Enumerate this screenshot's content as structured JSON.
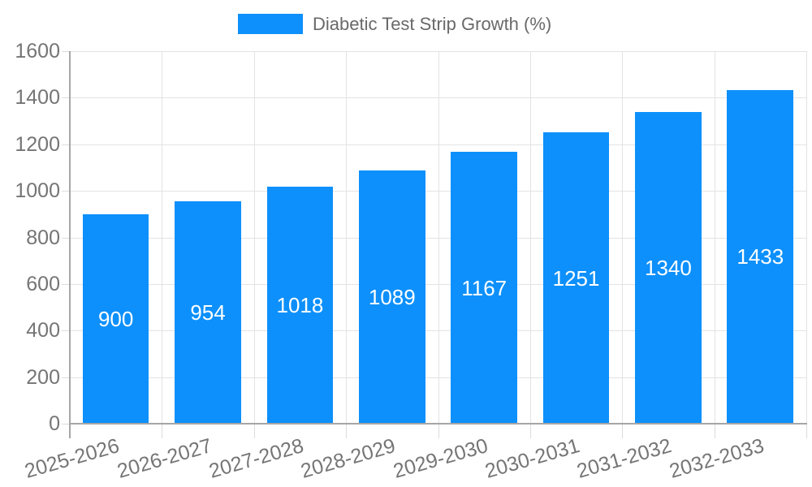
{
  "chart_data": {
    "type": "bar",
    "title": "",
    "legend": {
      "label": "Diabetic Test Strip Growth (%)",
      "position": "top-center"
    },
    "categories": [
      "2025-2026",
      "2026-2027",
      "2027-2028",
      "2028-2029",
      "2029-2030",
      "2030-2031",
      "2031-2032",
      "2032-2033"
    ],
    "series": [
      {
        "name": "Diabetic Test Strip Growth (%)",
        "values": [
          900,
          954,
          1018,
          1089,
          1167,
          1251,
          1340,
          1433
        ]
      }
    ],
    "xlabel": "",
    "ylabel": "",
    "ylim": [
      0,
      1600
    ],
    "ytick_step": 200,
    "ytick_labels": [
      "0",
      "200",
      "400",
      "600",
      "800",
      "1000",
      "1200",
      "1400",
      "1600"
    ],
    "grid": true,
    "bar_value_labels_inside": true,
    "x_label_rotation_deg": -16,
    "colors": {
      "bar": "#0D90FB",
      "bar_value_text": "#FFFFFF",
      "axis_line": "#A6A6A6",
      "gridline": "#E3E3E3",
      "tick_mark": "#DCDCDC",
      "tick_text": "#757575",
      "legend_text": "#696969"
    }
  }
}
